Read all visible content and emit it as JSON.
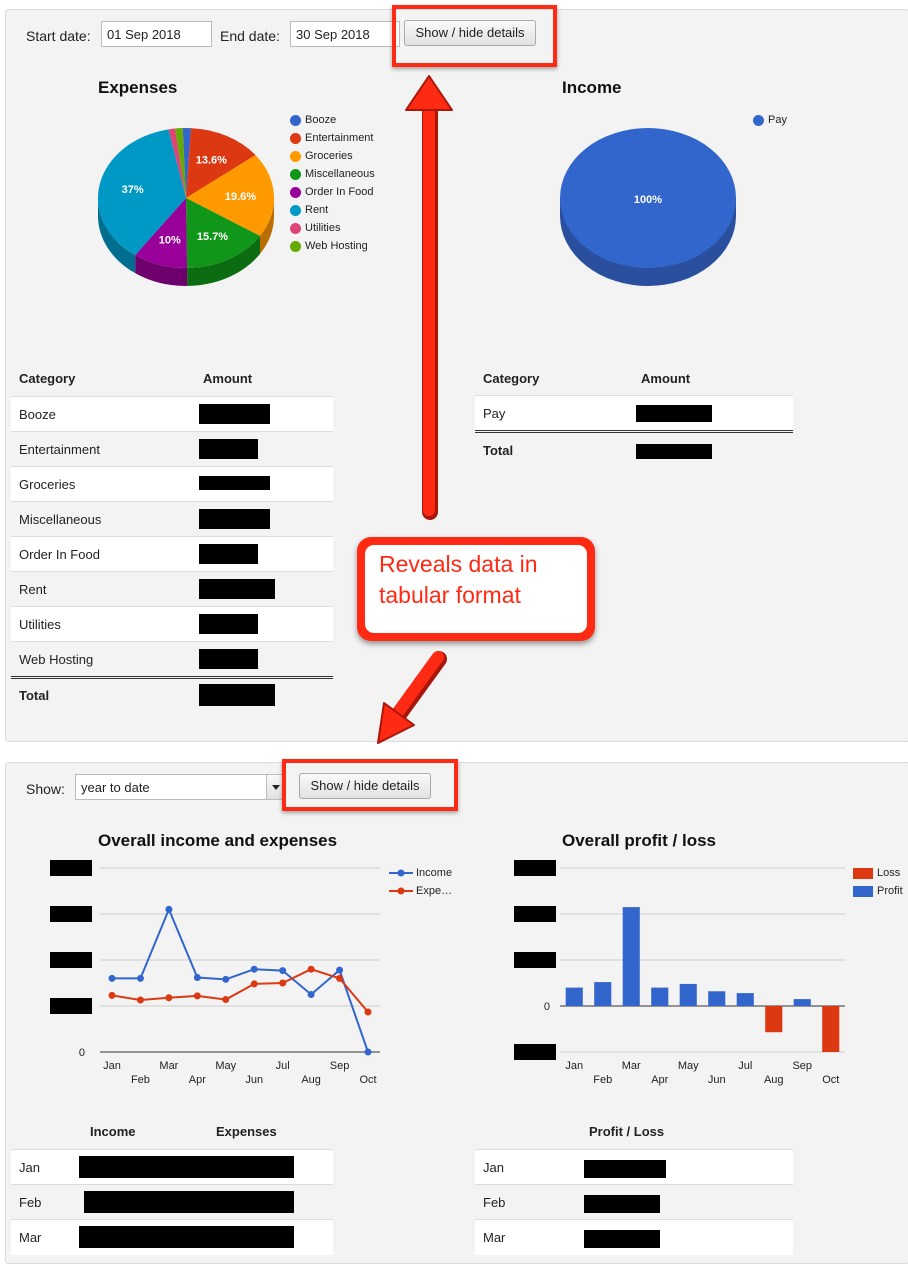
{
  "top": {
    "start_label": "Start date:",
    "start_value": "01 Sep 2018",
    "end_label": "End date:",
    "end_value": "30 Sep 2018",
    "toggle_label": "Show / hide details"
  },
  "expenses": {
    "title": "Expenses",
    "legend": [
      "Booze",
      "Entertainment",
      "Groceries",
      "Miscellaneous",
      "Order In Food",
      "Rent",
      "Utilities",
      "Web Hosting"
    ],
    "slice_labels": [
      "13.6%",
      "19.6%",
      "15.7%",
      "10%",
      "37%"
    ],
    "table": {
      "headers": [
        "Category",
        "Amount"
      ],
      "rows": [
        "Booze",
        "Entertainment",
        "Groceries",
        "Miscellaneous",
        "Order In Food",
        "Rent",
        "Utilities",
        "Web Hosting"
      ],
      "total_label": "Total"
    }
  },
  "income": {
    "title": "Income",
    "legend": [
      "Pay"
    ],
    "slice_label": "100%",
    "table": {
      "headers": [
        "Category",
        "Amount"
      ],
      "rows": [
        "Pay"
      ],
      "total_label": "Total"
    }
  },
  "annotation": {
    "callout_line1": "Reveals data in",
    "callout_line2": "tabular format",
    "color": "#ff2a14"
  },
  "bottom": {
    "show_label": "Show:",
    "period_value": "year to date",
    "toggle_label": "Show / hide details"
  },
  "line_chart": {
    "title": "Overall income and expenses",
    "legend_income": "Income",
    "legend_expenses": "Expe…",
    "zero_label": "0",
    "months_top": [
      "Jan",
      "Mar",
      "May",
      "Jul",
      "Sep"
    ],
    "months_bottom": [
      "Feb",
      "Apr",
      "Jun",
      "Aug",
      "Oct"
    ],
    "table_headers": [
      "Income",
      "Expenses"
    ],
    "table_rows": [
      "Jan",
      "Feb",
      "Mar"
    ]
  },
  "bar_chart": {
    "title": "Overall profit / loss",
    "legend_loss": "Loss",
    "legend_profit": "Profit",
    "zero_label": "0",
    "months_top": [
      "Jan",
      "Mar",
      "May",
      "Jul",
      "Sep"
    ],
    "months_bottom": [
      "Feb",
      "Apr",
      "Jun",
      "Aug",
      "Oct"
    ],
    "table_header": "Profit / Loss",
    "table_rows": [
      "Jan",
      "Feb",
      "Mar"
    ]
  },
  "chart_data": [
    {
      "type": "pie",
      "title": "Expenses",
      "categories": [
        "Booze",
        "Entertainment",
        "Groceries",
        "Miscellaneous",
        "Order In Food",
        "Rent",
        "Utilities",
        "Web Hosting"
      ],
      "values": [
        1.5,
        13.6,
        19.6,
        15.7,
        10,
        37,
        1.2,
        1.4
      ],
      "colors": [
        "#3366cc",
        "#dc3912",
        "#ff9900",
        "#109618",
        "#990099",
        "#0099c6",
        "#dd4477",
        "#66aa00"
      ],
      "legend": "right"
    },
    {
      "type": "pie",
      "title": "Income",
      "categories": [
        "Pay"
      ],
      "values": [
        100
      ],
      "colors": [
        "#3366cc"
      ],
      "legend": "right"
    },
    {
      "type": "line",
      "title": "Overall income and expenses",
      "categories": [
        "Jan",
        "Feb",
        "Mar",
        "Apr",
        "May",
        "Jun",
        "Jul",
        "Aug",
        "Sep",
        "Oct"
      ],
      "series": [
        {
          "name": "Income",
          "values": [
            1.6,
            1.6,
            3.1,
            1.62,
            1.58,
            1.8,
            1.77,
            1.25,
            1.78,
            0
          ],
          "color": "#3366cc"
        },
        {
          "name": "Expenses",
          "values": [
            1.23,
            1.13,
            1.18,
            1.22,
            1.14,
            1.48,
            1.5,
            1.8,
            1.6,
            0.87
          ],
          "color": "#dc3912"
        }
      ],
      "ylim": [
        0,
        4
      ],
      "grid": true,
      "legend": "right"
    },
    {
      "type": "bar",
      "title": "Overall profit / loss",
      "categories": [
        "Jan",
        "Feb",
        "Mar",
        "Apr",
        "May",
        "Jun",
        "Jul",
        "Aug",
        "Sep",
        "Oct"
      ],
      "values": [
        0.4,
        0.52,
        2.15,
        0.4,
        0.48,
        0.32,
        0.28,
        -0.57,
        0.15,
        -1.0
      ],
      "colors": {
        "profit": "#3366cc",
        "loss": "#dc3912"
      },
      "ylim": [
        -1,
        3
      ],
      "grid": true,
      "legend": "right"
    }
  ]
}
